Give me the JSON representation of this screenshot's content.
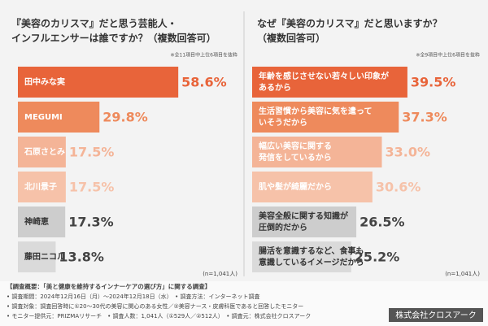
{
  "chart_data": [
    {
      "type": "bar",
      "orientation": "horizontal",
      "title": "『美容のカリスマ』だと思う芸能人・\nインフルエンサーは誰ですか？（複数回答可）",
      "note": "※全11項目中上位6項目を抜粋",
      "sample_size": "(n=1,041人)",
      "categories": [
        "田中みな実",
        "MEGUMI",
        "石原さとみ",
        "北川景子",
        "神崎恵",
        "藤田ニコル"
      ],
      "values": [
        58.6,
        29.8,
        17.5,
        17.5,
        17.3,
        13.8
      ],
      "value_labels": [
        "58.6%",
        "29.8%",
        "17.5%",
        "17.5%",
        "17.3%",
        "13.8%"
      ],
      "colors": [
        "#e8643a",
        "#ee8a5c",
        "#f4b497",
        "#f6c2a9",
        "#cdcdcd",
        "#dadada"
      ],
      "value_label_colors": [
        "#e8643a",
        "#ee8a5c",
        "#f4b497",
        "#f6c2a9",
        "#444444",
        "#444444"
      ],
      "category_label_colors": [
        "#ffffff",
        "#ffffff",
        "#ffffff",
        "#ffffff",
        "#333333",
        "#333333"
      ],
      "xlim": [
        0,
        85
      ]
    },
    {
      "type": "bar",
      "orientation": "horizontal",
      "title": "なぜ『美容のカリスマ』だと思いますか？\n（複数回答可）",
      "note": "※全9項目中上位6項目を抜粋",
      "sample_size": "(n=1,041人)",
      "categories": [
        "年齢を感じさせない若々しい印象が\nあるから",
        "生活習慣から美容に気を遣って\nいそうだから",
        "幅広い美容に関する\n発信をしているから",
        "肌や髪が綺麗だから",
        "美容全般に関する知識が\n圧倒的だから",
        "腸活を意識するなど、食事も\n意識しているイメージだから"
      ],
      "values": [
        39.5,
        37.3,
        33.0,
        30.6,
        26.5,
        25.2
      ],
      "value_labels": [
        "39.5%",
        "37.3%",
        "33.0%",
        "30.6%",
        "26.5%",
        "25.2%"
      ],
      "colors": [
        "#e8643a",
        "#ee8a5c",
        "#f4b497",
        "#f6c2a9",
        "#cdcdcd",
        "#dadada"
      ],
      "value_label_colors": [
        "#e8643a",
        "#ee8a5c",
        "#f4b497",
        "#f6c2a9",
        "#444444",
        "#444444"
      ],
      "category_label_colors": [
        "#ffffff",
        "#ffffff",
        "#ffffff",
        "#ffffff",
        "#333333",
        "#333333"
      ],
      "xlim": [
        0,
        60
      ]
    }
  ],
  "footer": {
    "lines": [
      "【調査概要：「美と健康を維持するインナーケアの選び方」に関する調査】",
      "• 調査期間：2024年12月16日（月）～2024年12月18日（水）　• 調査方法：インターネット調査",
      "• 調査対象：調査回答時に①20～30代の美容に関心のある女性／②美容ナース・皮膚科医であると回答したモニター",
      "• モニター提供元：PRIZMAリサーチ　• 調査人数：1,041人（①529人／②512人）　• 調査元：株式会社クロスアーク"
    ],
    "badge": "株式会社クロスアーク"
  }
}
